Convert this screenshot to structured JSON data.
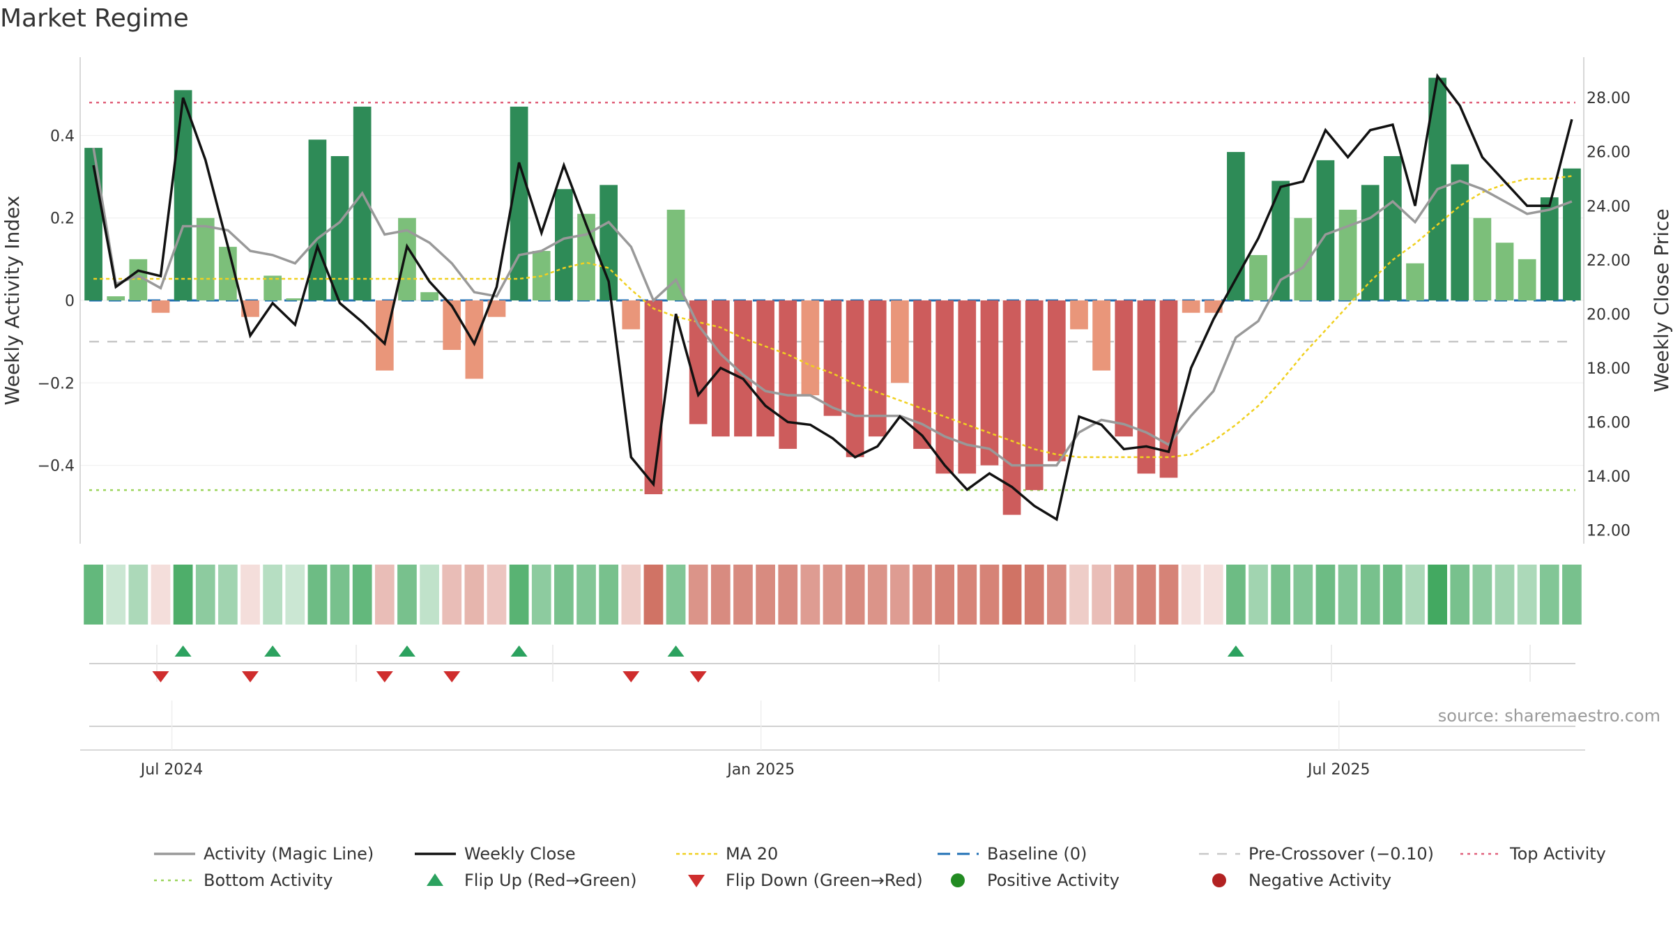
{
  "title": "Market Regime",
  "source": "source: sharemaestro.com",
  "chart_data": {
    "type": "bar",
    "ylabel": "Weekly Activity Index",
    "y2label": "Weekly Close Price",
    "ylim": [
      -0.59,
      0.59
    ],
    "y2lim": [
      11.5,
      29.5
    ],
    "yticks": [
      -0.4,
      -0.2,
      0,
      0.2,
      0.4
    ],
    "ytick_labels": [
      "−0.4",
      "−0.2",
      "0",
      "0.2",
      "0.4"
    ],
    "y2ticks": [
      12,
      14,
      16,
      18,
      20,
      22,
      24,
      26,
      28
    ],
    "y2tick_labels": [
      "12.00",
      "14.00",
      "16.00",
      "18.00",
      "20.00",
      "22.00",
      "24.00",
      "26.00",
      "28.00"
    ],
    "xtick_labels": [
      {
        "label": "Jul 2024",
        "week": 3.5
      },
      {
        "label": "Jan 2025",
        "week": 29.8
      },
      {
        "label": "Jul 2025",
        "week": 55.6
      }
    ],
    "reference_lines": {
      "top": 0.48,
      "bottom": -0.46,
      "pre_crossover": -0.1,
      "baseline": 0
    },
    "activity": [
      0.37,
      0.01,
      0.1,
      -0.03,
      0.51,
      0.2,
      0.13,
      -0.04,
      0.06,
      0.005,
      0.39,
      0.35,
      0.47,
      -0.17,
      0.2,
      0.02,
      -0.12,
      -0.19,
      -0.04,
      0.47,
      0.12,
      0.27,
      0.21,
      0.28,
      -0.07,
      -0.47,
      0.22,
      -0.3,
      -0.33,
      -0.33,
      -0.33,
      -0.36,
      -0.23,
      -0.28,
      -0.38,
      -0.33,
      -0.2,
      -0.36,
      -0.42,
      -0.42,
      -0.4,
      -0.52,
      -0.46,
      -0.39,
      -0.07,
      -0.17,
      -0.33,
      -0.42,
      -0.43,
      -0.03,
      -0.03,
      0.36,
      0.11,
      0.29,
      0.2,
      0.34,
      0.22,
      0.28,
      0.35,
      0.09,
      0.54,
      0.33,
      0.2,
      0.14,
      0.1,
      0.25,
      0.32
    ],
    "magic_line": [
      0.37,
      0.04,
      0.06,
      0.03,
      0.18,
      0.18,
      0.17,
      0.12,
      0.11,
      0.09,
      0.15,
      0.19,
      0.26,
      0.16,
      0.17,
      0.14,
      0.09,
      0.02,
      0.01,
      0.11,
      0.12,
      0.15,
      0.16,
      0.19,
      0.13,
      0.0,
      0.05,
      -0.06,
      -0.13,
      -0.18,
      -0.22,
      -0.23,
      -0.23,
      -0.26,
      -0.28,
      -0.28,
      -0.28,
      -0.3,
      -0.33,
      -0.35,
      -0.36,
      -0.4,
      -0.4,
      -0.4,
      -0.32,
      -0.29,
      -0.3,
      -0.32,
      -0.35,
      -0.28,
      -0.22,
      -0.09,
      -0.05,
      0.05,
      0.08,
      0.16,
      0.18,
      0.2,
      0.24,
      0.19,
      0.27,
      0.29,
      0.27,
      0.24,
      0.21,
      0.22,
      0.24
    ],
    "weekly_close": [
      25.5,
      21.0,
      21.6,
      21.4,
      28.0,
      25.7,
      22.5,
      19.2,
      20.4,
      19.6,
      22.5,
      20.4,
      19.7,
      18.9,
      22.5,
      21.2,
      20.3,
      18.9,
      21.0,
      25.6,
      23.0,
      25.5,
      23.3,
      21.2,
      14.7,
      13.7,
      20.0,
      17.0,
      18.0,
      17.6,
      16.6,
      16.0,
      15.9,
      15.4,
      14.7,
      15.1,
      16.2,
      15.5,
      14.4,
      13.5,
      14.1,
      13.6,
      12.9,
      12.4,
      16.2,
      15.9,
      15.0,
      15.1,
      14.9,
      18.0,
      19.8,
      21.3,
      22.8,
      24.7,
      24.9,
      26.8,
      25.8,
      26.8,
      27.0,
      24.0,
      28.8,
      27.7,
      25.8,
      24.9,
      24.0,
      24.0,
      27.2
    ],
    "ma20": [
      21.3,
      21.3,
      21.3,
      21.3,
      21.3,
      21.3,
      21.3,
      21.3,
      21.3,
      21.3,
      21.3,
      21.3,
      21.3,
      21.3,
      21.3,
      21.3,
      21.3,
      21.3,
      21.3,
      21.3,
      21.4,
      21.7,
      21.9,
      21.7,
      20.9,
      20.2,
      19.9,
      19.7,
      19.5,
      19.1,
      18.8,
      18.5,
      18.1,
      17.8,
      17.4,
      17.1,
      16.8,
      16.5,
      16.2,
      15.9,
      15.6,
      15.3,
      15.0,
      14.8,
      14.7,
      14.7,
      14.7,
      14.7,
      14.7,
      14.8,
      15.3,
      15.9,
      16.6,
      17.5,
      18.5,
      19.4,
      20.3,
      21.2,
      22.0,
      22.6,
      23.3,
      24.0,
      24.5,
      24.8,
      25.0,
      25.0,
      25.1
    ],
    "shade_alpha": [
      0.75,
      0.25,
      0.4,
      0.2,
      0.85,
      0.55,
      0.45,
      0.2,
      0.35,
      0.25,
      0.7,
      0.65,
      0.75,
      0.4,
      0.65,
      0.3,
      0.4,
      0.45,
      0.35,
      0.8,
      0.55,
      0.65,
      0.6,
      0.65,
      0.3,
      0.85,
      0.6,
      0.65,
      0.7,
      0.7,
      0.7,
      0.7,
      0.6,
      0.65,
      0.7,
      0.65,
      0.6,
      0.7,
      0.75,
      0.75,
      0.75,
      0.85,
      0.8,
      0.7,
      0.3,
      0.4,
      0.65,
      0.75,
      0.75,
      0.2,
      0.2,
      0.7,
      0.45,
      0.65,
      0.6,
      0.7,
      0.6,
      0.65,
      0.7,
      0.4,
      0.9,
      0.65,
      0.55,
      0.45,
      0.4,
      0.6,
      0.65
    ],
    "flip_up_weeks": [
      4,
      8,
      14,
      19,
      26,
      51
    ],
    "flip_down_weeks": [
      3,
      7,
      13,
      16,
      24,
      27
    ],
    "legend": [
      "Activity (Magic Line)",
      "Weekly Close",
      "MA 20",
      "Baseline (0)",
      "Pre-Crossover (−0.10)",
      "Top Activity",
      "Bottom Activity",
      "Flip Up (Red→Green)",
      "Flip Down (Green→Red)",
      "Positive Activity",
      "Negative Activity"
    ]
  },
  "colors": {
    "pos_dark": "#2e8b57",
    "pos_light": "#7cbf7a",
    "neg_dark": "#cd5c5c",
    "neg_light": "#e9967a",
    "shade_pos": "#2fa050",
    "shade_neg": "#c85a4a",
    "magic": "#999999",
    "close": "#111111",
    "ma": "#f0d020",
    "baseline": "#1f6fb4",
    "pre": "#c8c8c8",
    "top": "#e0607a",
    "bottom": "#9ad45a",
    "flip_up": "#2ca25f",
    "flip_down": "#cf2d2d",
    "pos_marker": "#228b22",
    "neg_marker": "#b22222"
  }
}
